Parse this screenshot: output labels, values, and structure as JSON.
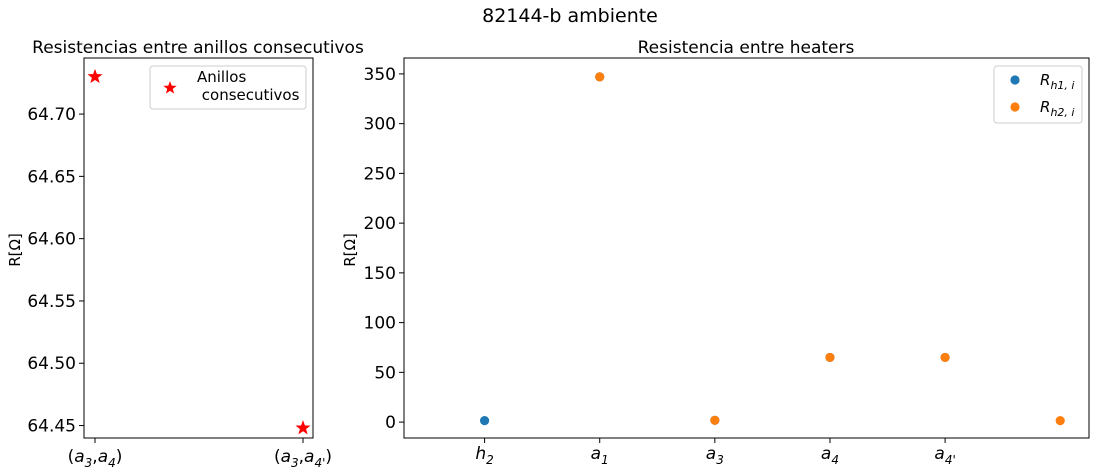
{
  "figure": {
    "suptitle": "82144-b ambiente"
  },
  "chart_data": [
    {
      "type": "scatter",
      "title": "Resistencias entre anillos consecutivos",
      "xlabel": "",
      "ylabel": "R[Ω]",
      "categories": [
        "(a3,a4)",
        "(a3,a4')"
      ],
      "category_labels": [
        {
          "base": "(",
          "parts": [
            [
              "a",
              "3"
            ],
            ",",
            [
              "a",
              "4"
            ]
          ],
          "end": ")"
        },
        {
          "base": "(",
          "parts": [
            [
              "a",
              "3"
            ],
            ",",
            [
              "a",
              "4'"
            ]
          ],
          "end": ")"
        }
      ],
      "ylim": [
        64.44,
        64.745
      ],
      "yticks": [
        64.45,
        64.5,
        64.55,
        64.6,
        64.65,
        64.7
      ],
      "ytick_labels": [
        "64.45",
        "64.50",
        "64.55",
        "64.60",
        "64.65",
        "64.70"
      ],
      "legend_position": "upper right",
      "series": [
        {
          "name": "Anillos consecutivos",
          "legend_lines": [
            "Anillos",
            " consecutivos"
          ],
          "marker": "star",
          "color": "#ff0000",
          "values": [
            64.73,
            64.448
          ]
        }
      ]
    },
    {
      "type": "scatter",
      "title": "Resistencia entre heaters",
      "xlabel": "",
      "ylabel": "R[Ω]",
      "categories": [
        "h2",
        "a1",
        "a3",
        "a4",
        "a4'",
        ""
      ],
      "category_labels": [
        {
          "main": "h",
          "sub": "2"
        },
        {
          "main": "a",
          "sub": "1"
        },
        {
          "main": "a",
          "sub": "3"
        },
        {
          "main": "a",
          "sub": "4"
        },
        {
          "main": "a",
          "sub": "4'"
        }
      ],
      "xlim": [
        -0.7,
        5.25
      ],
      "ylim": [
        -16,
        366
      ],
      "yticks": [
        0,
        50,
        100,
        150,
        200,
        250,
        300,
        350
      ],
      "ytick_labels": [
        "0",
        "50",
        "100",
        "150",
        "200",
        "250",
        "300",
        "350"
      ],
      "legend_position": "upper right",
      "series": [
        {
          "name": "Rh1,i",
          "legend_main": "R",
          "legend_sub": "h1, i",
          "marker": "circle",
          "color": "#1f77b4",
          "x": [
            0,
            1,
            2,
            3,
            4
          ],
          "values": [
            1.5,
            347,
            1.8,
            65,
            65
          ]
        },
        {
          "name": "Rh2,i",
          "legend_main": "R",
          "legend_sub": "h2, i",
          "marker": "circle",
          "color": "#ff7f0e",
          "x": [
            1,
            2,
            3,
            4,
            5
          ],
          "values": [
            347,
            1.8,
            65,
            65,
            1.5
          ]
        }
      ]
    }
  ]
}
